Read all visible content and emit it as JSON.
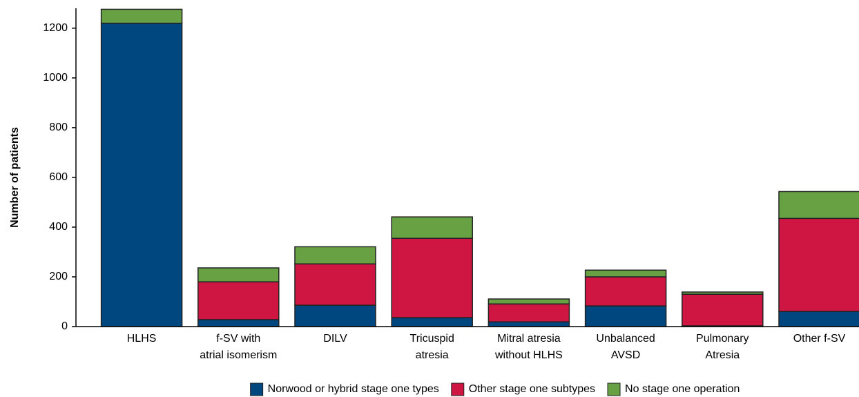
{
  "chart_data": {
    "type": "stacked_bar",
    "y_label": "Number of patients",
    "categories": [
      "HLHS",
      "f-SV with\natrial isomerism",
      "DILV",
      "Tricuspid\natresia",
      "Mitral atresia\nwithout HLHS",
      "Unbalanced\nAVSD",
      "Pulmonary\nAtresia",
      "Other f-SV"
    ],
    "series": [
      {
        "name": "Norwood or hybrid stage one types",
        "color": "#00467f",
        "values": [
          1220,
          28,
          86,
          36,
          19,
          83,
          3,
          61
        ]
      },
      {
        "name": "Other stage one subtypes",
        "color": "#cf1541",
        "values": [
          0,
          152,
          166,
          319,
          72,
          117,
          127,
          374
        ]
      },
      {
        "name": "No stage one operation",
        "color": "#67a143",
        "values": [
          56,
          56,
          69,
          86,
          20,
          27,
          9,
          108
        ]
      }
    ],
    "ylim": [
      0,
      1280
    ],
    "yticks": [
      0,
      200,
      400,
      600,
      800,
      1000,
      1200
    ],
    "grid": false,
    "legend": "bottom"
  }
}
